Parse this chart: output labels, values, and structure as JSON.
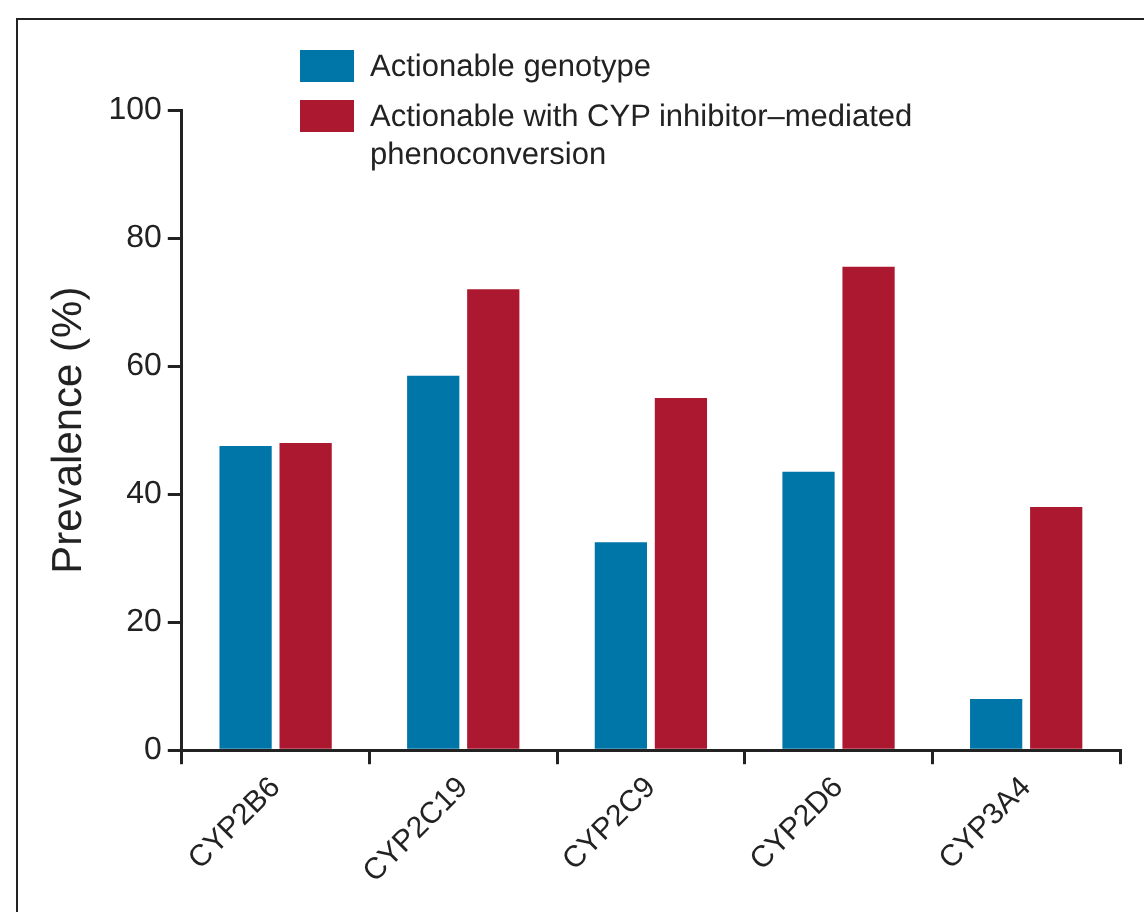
{
  "chart_data": {
    "type": "bar",
    "ylabel": "Prevalence (%)",
    "categories": [
      "CYP2B6",
      "CYP2C19",
      "CYP2C9",
      "CYP2D6",
      "CYP3A4"
    ],
    "series": [
      {
        "name": "Actionable genotype",
        "color": "#0075a8",
        "values": [
          47.5,
          58.5,
          32.5,
          43.5,
          8
        ]
      },
      {
        "name": "Actionable with CYP inhibitor–mediated phenoconversion",
        "color": "#ab1830",
        "values": [
          48,
          72,
          55,
          75.5,
          38
        ]
      }
    ],
    "ylim": [
      0,
      100
    ],
    "yticks": [
      0,
      20,
      40,
      60,
      80,
      100
    ],
    "grid": false,
    "legend": "top"
  }
}
